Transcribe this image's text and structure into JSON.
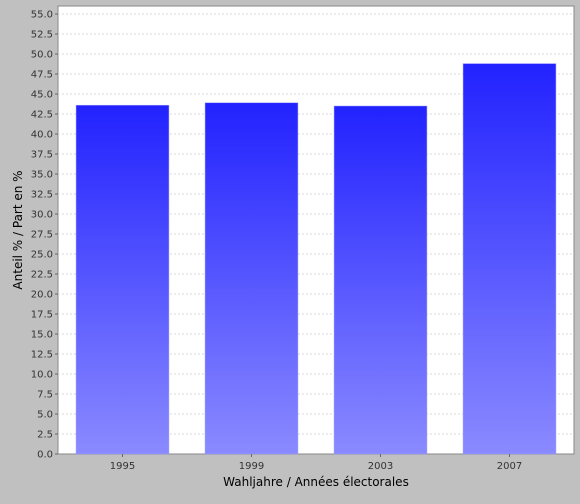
{
  "chart_data": {
    "type": "bar",
    "title": "",
    "xlabel": "Wahljahre / Années électorales",
    "ylabel": "Anteil % / Part en %",
    "categories": [
      "1995",
      "1999",
      "2003",
      "2007"
    ],
    "values": [
      43.6,
      43.9,
      43.5,
      48.8
    ],
    "ylim": [
      0,
      56
    ],
    "yticks": [
      "0.0",
      "2.5",
      "5.0",
      "7.5",
      "10.0",
      "12.5",
      "15.0",
      "17.5",
      "20.0",
      "22.5",
      "25.0",
      "27.5",
      "30.0",
      "32.5",
      "35.0",
      "37.5",
      "40.0",
      "42.5",
      "45.0",
      "47.5",
      "50.0",
      "52.5",
      "55.0"
    ],
    "grid": true,
    "legend": "none",
    "colors": {
      "background": "#c0c0c0",
      "plot_background": "#ffffff",
      "bar_top": "#2222ff",
      "bar_bottom": "#8a8aff",
      "gridline": "#d8d8d8"
    }
  }
}
